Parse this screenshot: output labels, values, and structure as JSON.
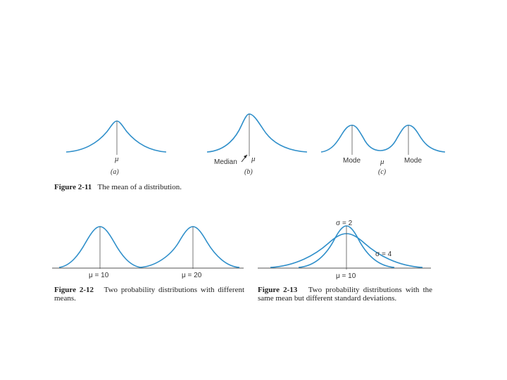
{
  "figure_2_11": {
    "number": "Figure 2-11",
    "text": "The mean of a distribution.",
    "panel_a": {
      "mu_label": "μ",
      "sub_label": "(a)"
    },
    "panel_b": {
      "median_label": "Median",
      "mu_label": "μ",
      "sub_label": "(b)"
    },
    "panel_c": {
      "mode_left_label": "Mode",
      "mu_label": "μ",
      "mode_right_label": "Mode",
      "sub_label": "(c)"
    }
  },
  "figure_2_12": {
    "number": "Figure 2-12",
    "text": "Two probability distributions with different means.",
    "mu1_label": "μ = 10",
    "mu2_label": "μ = 20"
  },
  "figure_2_13": {
    "number": "Figure 2-13",
    "text": "Two probability distributions with the same mean but different standard deviations.",
    "sigma_small_label": "σ = 2",
    "sigma_large_label": "σ = 4",
    "mu_label": "μ = 10"
  },
  "colors": {
    "curve": "#2f8fca",
    "axis": "#555555"
  }
}
